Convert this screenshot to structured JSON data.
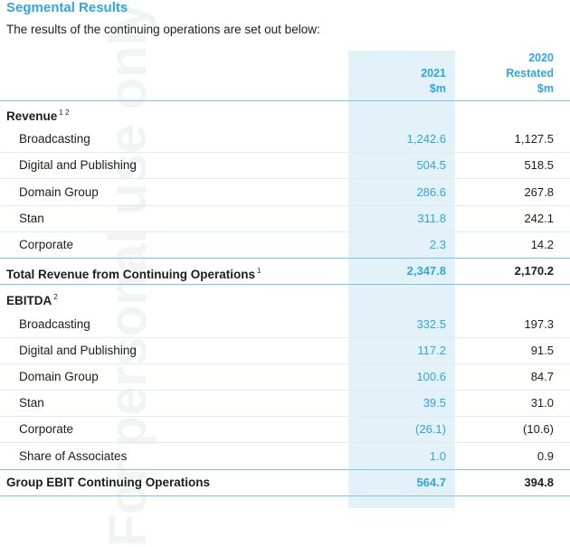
{
  "watermark": "For personal use only",
  "title": "Segmental Results",
  "subtitle": "The results of the continuing operations are set out below:",
  "columns": [
    {
      "year": "2021",
      "unit": "$m"
    },
    {
      "year": "2020",
      "note": "Restated",
      "unit": "$m"
    }
  ],
  "sections": [
    {
      "heading": "Revenue",
      "superscript": "1 2",
      "rows": [
        {
          "label": "Broadcasting",
          "values": [
            "1,242.6",
            "1,127.5"
          ]
        },
        {
          "label": "Digital and Publishing",
          "values": [
            "504.5",
            "518.5"
          ]
        },
        {
          "label": "Domain Group",
          "values": [
            "286.6",
            "267.8"
          ]
        },
        {
          "label": "Stan",
          "values": [
            "311.8",
            "242.1"
          ]
        },
        {
          "label": "Corporate",
          "values": [
            "2.3",
            "14.2"
          ]
        }
      ],
      "total": {
        "label": "Total Revenue from Continuing Operations",
        "superscript": "1",
        "values": [
          "2,347.8",
          "2,170.2"
        ]
      }
    },
    {
      "heading": "EBITDA",
      "superscript": "2",
      "rows": [
        {
          "label": "Broadcasting",
          "values": [
            "332.5",
            "197.3"
          ]
        },
        {
          "label": "Digital and Publishing",
          "values": [
            "117.2",
            "91.5"
          ]
        },
        {
          "label": "Domain Group",
          "values": [
            "100.6",
            "84.7"
          ]
        },
        {
          "label": "Stan",
          "values": [
            "39.5",
            "31.0"
          ]
        },
        {
          "label": "Corporate",
          "values": [
            "(26.1)",
            "(10.6)"
          ]
        },
        {
          "label": "Share of Associates",
          "values": [
            "1.0",
            "0.9"
          ]
        }
      ],
      "total": {
        "label": "Group EBIT Continuing Operations",
        "values": [
          "564.7",
          "394.8"
        ]
      }
    }
  ]
}
